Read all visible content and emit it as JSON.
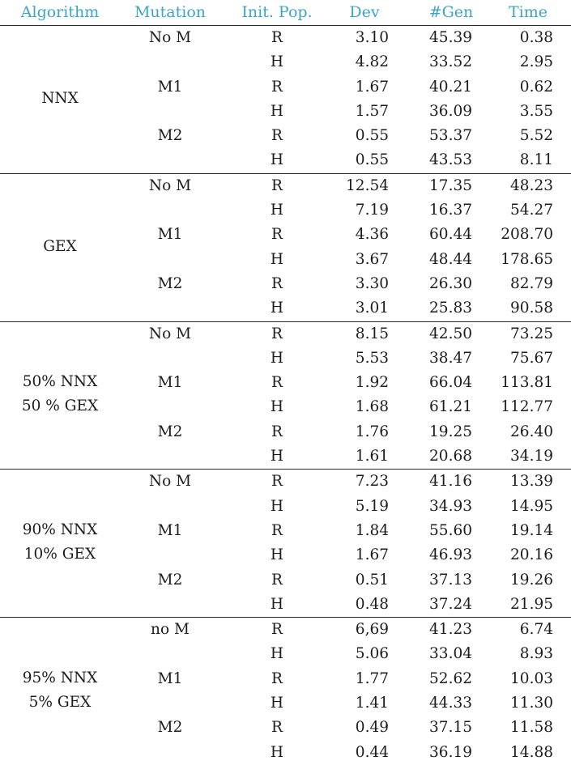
{
  "headers": {
    "algorithm": "Algorithm",
    "mutation": "Mutation",
    "init_pop": "Init. Pop.",
    "dev": "Dev",
    "gen": "#Gen",
    "time": "Time"
  },
  "groups": [
    {
      "algorithm": [
        "NNX"
      ],
      "rows": [
        {
          "mutation": "No M",
          "init": "R",
          "dev": "3.10",
          "gen": "45.39",
          "time": "0.38"
        },
        {
          "mutation": "",
          "init": "H",
          "dev": "4.82",
          "gen": "33.52",
          "time": "2.95"
        },
        {
          "mutation": "M1",
          "init": "R",
          "dev": "1.67",
          "gen": "40.21",
          "time": "0.62"
        },
        {
          "mutation": "",
          "init": "H",
          "dev": "1.57",
          "gen": "36.09",
          "time": "3.55"
        },
        {
          "mutation": "M2",
          "init": "R",
          "dev": "0.55",
          "gen": "53.37",
          "time": "5.52"
        },
        {
          "mutation": "",
          "init": "H",
          "dev": "0.55",
          "gen": "43.53",
          "time": "8.11"
        }
      ]
    },
    {
      "algorithm": [
        "GEX"
      ],
      "rows": [
        {
          "mutation": "No M",
          "init": "R",
          "dev": "12.54",
          "gen": "17.35",
          "time": "48.23"
        },
        {
          "mutation": "",
          "init": "H",
          "dev": "7.19",
          "gen": "16.37",
          "time": "54.27"
        },
        {
          "mutation": "M1",
          "init": "R",
          "dev": "4.36",
          "gen": "60.44",
          "time": "208.70"
        },
        {
          "mutation": "",
          "init": "H",
          "dev": "3.67",
          "gen": "48.44",
          "time": "178.65"
        },
        {
          "mutation": "M2",
          "init": "R",
          "dev": "3.30",
          "gen": "26.30",
          "time": "82.79"
        },
        {
          "mutation": "",
          "init": "H",
          "dev": "3.01",
          "gen": "25.83",
          "time": "90.58"
        }
      ]
    },
    {
      "algorithm": [
        "50% NNX",
        "50 % GEX"
      ],
      "rows": [
        {
          "mutation": "No M",
          "init": "R",
          "dev": "8.15",
          "gen": "42.50",
          "time": "73.25"
        },
        {
          "mutation": "",
          "init": "H",
          "dev": "5.53",
          "gen": "38.47",
          "time": "75.67"
        },
        {
          "mutation": "M1",
          "init": "R",
          "dev": "1.92",
          "gen": "66.04",
          "time": "113.81"
        },
        {
          "mutation": "",
          "init": "H",
          "dev": "1.68",
          "gen": "61.21",
          "time": "112.77"
        },
        {
          "mutation": "M2",
          "init": "R",
          "dev": "1.76",
          "gen": "19.25",
          "time": "26.40"
        },
        {
          "mutation": "",
          "init": "H",
          "dev": "1.61",
          "gen": "20.68",
          "time": "34.19"
        }
      ]
    },
    {
      "algorithm": [
        "90% NNX",
        "10% GEX"
      ],
      "rows": [
        {
          "mutation": "No M",
          "init": "R",
          "dev": "7.23",
          "gen": "41.16",
          "time": "13.39"
        },
        {
          "mutation": "",
          "init": "H",
          "dev": "5.19",
          "gen": "34.93",
          "time": "14.95"
        },
        {
          "mutation": "M1",
          "init": "R",
          "dev": "1.84",
          "gen": "55.60",
          "time": "19.14"
        },
        {
          "mutation": "",
          "init": "H",
          "dev": "1.67",
          "gen": "46.93",
          "time": "20.16"
        },
        {
          "mutation": "M2",
          "init": "R",
          "dev": "0.51",
          "gen": "37.13",
          "time": "19.26"
        },
        {
          "mutation": "",
          "init": "H",
          "dev": "0.48",
          "gen": "37.24",
          "time": "21.95"
        }
      ]
    },
    {
      "algorithm": [
        "95% NNX",
        "5% GEX"
      ],
      "rows": [
        {
          "mutation": "no M",
          "init": "R",
          "dev": "6,69",
          "gen": "41.23",
          "time": "6.74"
        },
        {
          "mutation": "",
          "init": "H",
          "dev": "5.06",
          "gen": "33.04",
          "time": "8.93"
        },
        {
          "mutation": "M1",
          "init": "R",
          "dev": "1.77",
          "gen": "52.62",
          "time": "10.03"
        },
        {
          "mutation": "",
          "init": "H",
          "dev": "1.41",
          "gen": "44.33",
          "time": "11.30"
        },
        {
          "mutation": "M2",
          "init": "R",
          "dev": "0.49",
          "gen": "37.15",
          "time": "11.58"
        },
        {
          "mutation": "",
          "init": "H",
          "dev": "0.44",
          "gen": "36.19",
          "time": "14.88"
        }
      ]
    }
  ],
  "colors": {
    "header_text": "#3aa5c8",
    "body_text": "#1c1c1c",
    "rule": "#2a2a2a"
  }
}
